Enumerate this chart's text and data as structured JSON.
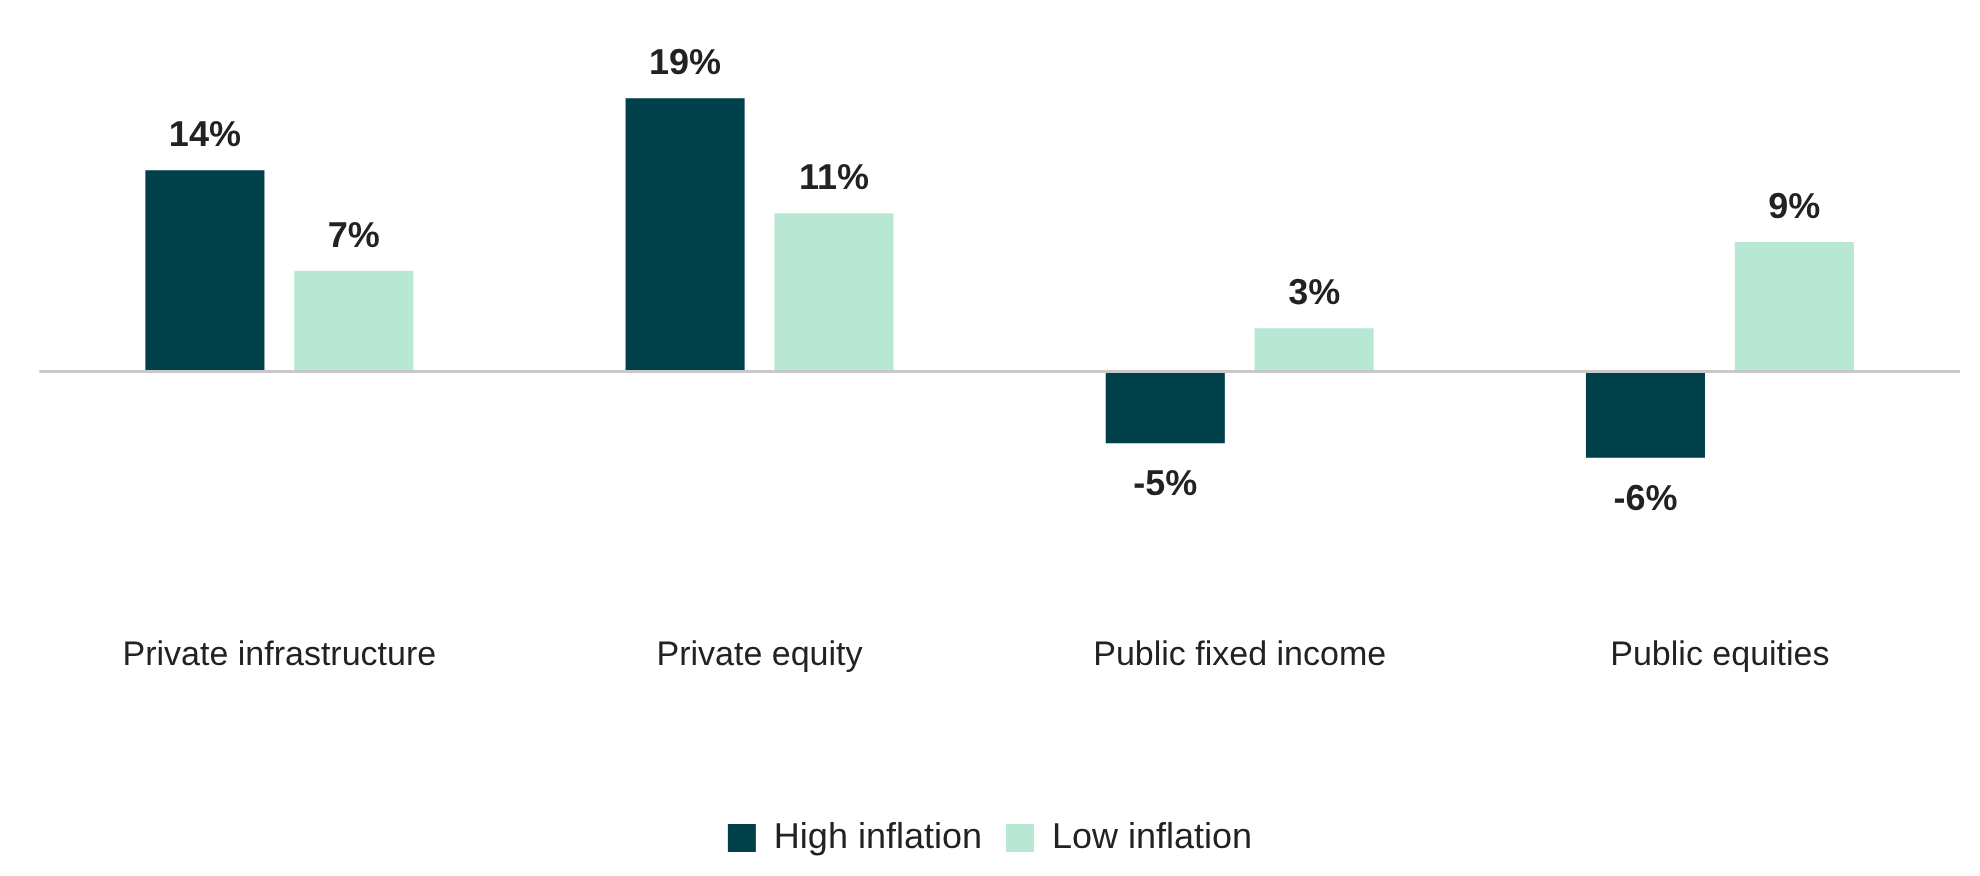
{
  "chart_data": {
    "type": "bar",
    "categories": [
      "Private infrastructure",
      "Private equity",
      "Public fixed income",
      "Public equities"
    ],
    "series": [
      {
        "name": "High inflation",
        "color": "#00404a",
        "values": [
          14,
          19,
          -5,
          -6
        ],
        "value_labels": [
          "14%",
          "19%",
          "-5%",
          "-6%"
        ]
      },
      {
        "name": "Low inflation",
        "color": "#b8e8d4",
        "values": [
          7,
          11,
          3,
          9
        ],
        "value_labels": [
          "7%",
          "11%",
          "3%",
          "9%"
        ]
      }
    ],
    "legend": "bottom"
  }
}
